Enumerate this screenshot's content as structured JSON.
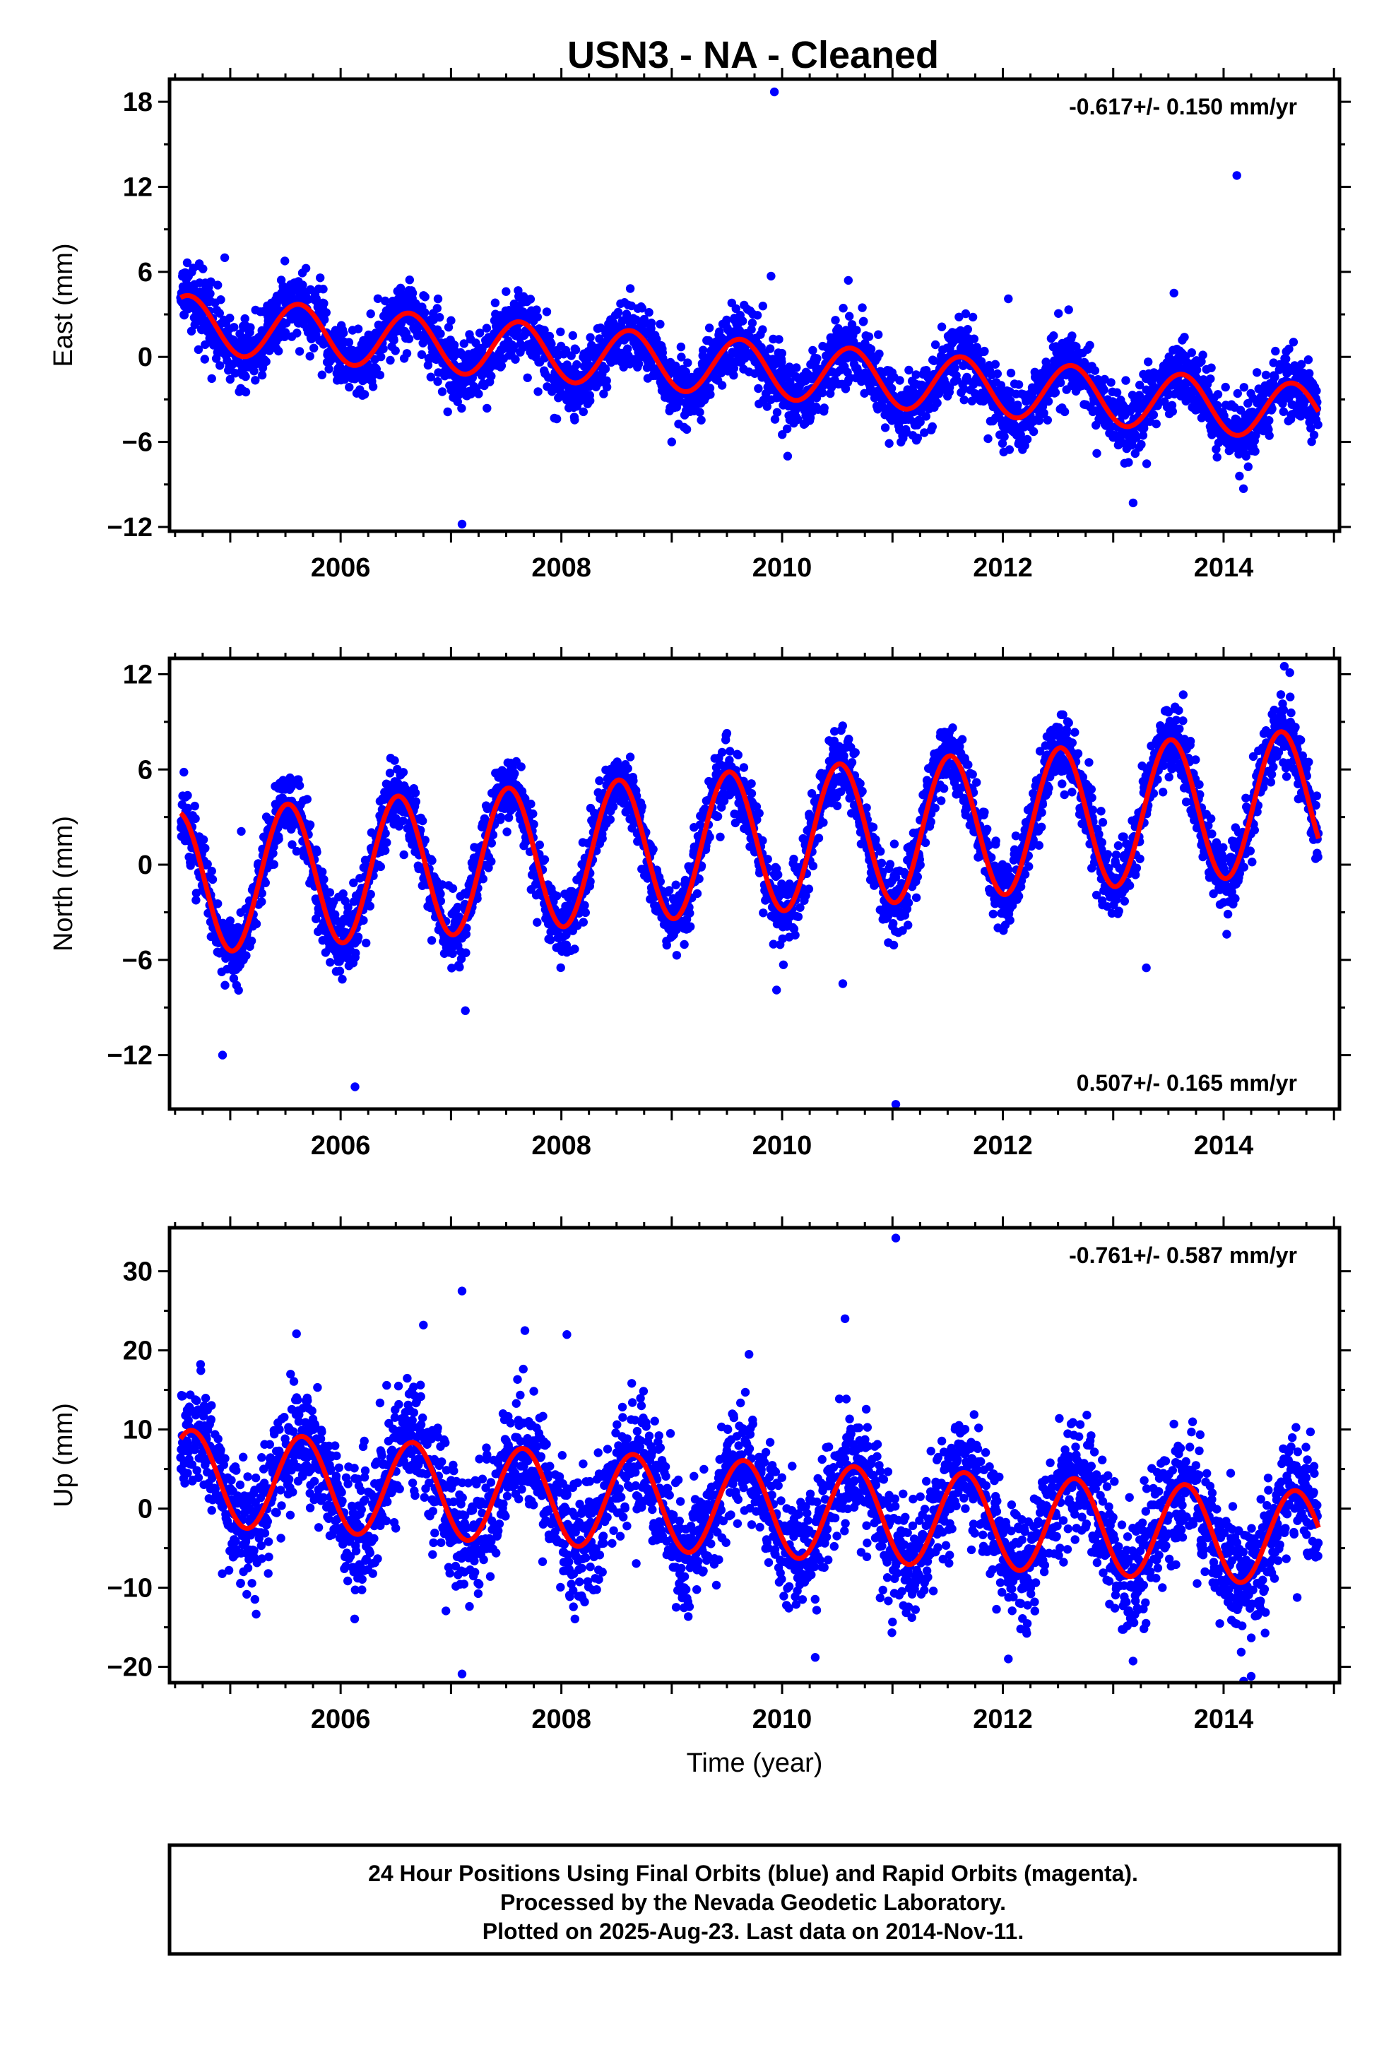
{
  "title": "USN3  - NA - Cleaned",
  "colors": {
    "points": "#0000ff",
    "fit": "#ff0000",
    "frame": "#000000"
  },
  "footer": {
    "line1": "24 Hour Positions Using Final Orbits (blue) and Rapid Orbits (magenta).",
    "line2": "Processed by the Nevada Geodetic Laboratory.",
    "line3": "Plotted on 2025-Aug-23. Last data on 2014-Nov-11."
  },
  "chart_data": [
    {
      "type": "scatter",
      "name": "east",
      "ylabel": "East (mm)",
      "xlabel": "",
      "rate": "-0.617+/- 0.150 mm/yr",
      "rate_position": "top-right",
      "xlim": [
        2004.45,
        2015.05
      ],
      "ylim": [
        -12.3,
        19.6
      ],
      "xticks": [
        2006,
        2008,
        2010,
        2012,
        2014
      ],
      "yticks": [
        -12,
        -6,
        0,
        6,
        12,
        18
      ],
      "ytick_labels": [
        "−12",
        "−6",
        "0",
        "6",
        "12",
        "18"
      ],
      "data_start": 2004.55,
      "data_end": 2014.86,
      "trend": {
        "intercept_2004_5": 2.4,
        "slope_mm_yr": -0.617
      },
      "seasonal_amplitude": 2.0,
      "seasonal_peak": 0.62,
      "noise_mm": 1.2,
      "outliers": [
        [
          2009.93,
          18.7
        ],
        [
          2014.12,
          12.8
        ],
        [
          2007.1,
          -11.8
        ],
        [
          2013.18,
          -10.3
        ],
        [
          2014.18,
          -9.3
        ],
        [
          2009.0,
          -6.0
        ],
        [
          2010.05,
          -7.0
        ],
        [
          2004.95,
          7.0
        ],
        [
          2009.9,
          5.7
        ],
        [
          2010.6,
          5.4
        ],
        [
          2013.55,
          4.5
        ],
        [
          2012.05,
          4.1
        ]
      ],
      "fit_series": "red seasonal + linear fit"
    },
    {
      "type": "scatter",
      "name": "north",
      "ylabel": "North (mm)",
      "xlabel": "",
      "rate": "0.507+/- 0.165 mm/yr",
      "rate_position": "bottom-right",
      "xlim": [
        2004.45,
        2015.05
      ],
      "ylim": [
        -15.4,
        13.0
      ],
      "xticks": [
        2006,
        2008,
        2010,
        2012,
        2014
      ],
      "yticks": [
        -12,
        -6,
        0,
        6,
        12
      ],
      "ytick_labels": [
        "−12",
        "−6",
        "0",
        "6",
        "12"
      ],
      "data_start": 2004.55,
      "data_end": 2014.86,
      "trend": {
        "intercept_2004_5": -1.2,
        "slope_mm_yr": 0.507
      },
      "seasonal_amplitude": 4.5,
      "seasonal_peak": 0.52,
      "noise_mm": 1.1,
      "outliers": [
        [
          2004.93,
          -12.0
        ],
        [
          2006.13,
          -14.0
        ],
        [
          2007.13,
          -9.2
        ],
        [
          2011.03,
          -15.1
        ],
        [
          2014.55,
          12.5
        ],
        [
          2014.6,
          12.1
        ],
        [
          2009.95,
          -7.9
        ],
        [
          2010.55,
          -7.5
        ],
        [
          2013.3,
          -6.5
        ],
        [
          2005.1,
          2.1
        ]
      ],
      "fit_series": "red seasonal + linear fit"
    },
    {
      "type": "scatter",
      "name": "up",
      "ylabel": "Up (mm)",
      "xlabel": "Time (year)",
      "rate": "-0.761+/- 0.587 mm/yr",
      "rate_position": "top-right",
      "xlim": [
        2004.45,
        2015.05
      ],
      "ylim": [
        -22.0,
        35.5
      ],
      "xticks": [
        2006,
        2008,
        2010,
        2012,
        2014
      ],
      "yticks": [
        -20,
        -10,
        0,
        10,
        20,
        30
      ],
      "ytick_labels": [
        "−20",
        "−10",
        "0",
        "10",
        "20",
        "30"
      ],
      "data_start": 2004.55,
      "data_end": 2014.86,
      "trend": {
        "intercept_2004_5": 4.0,
        "slope_mm_yr": -0.761
      },
      "seasonal_amplitude": 6.0,
      "seasonal_peak": 0.65,
      "noise_mm": 3.8,
      "outliers": [
        [
          2011.03,
          34.2
        ],
        [
          2007.1,
          27.5
        ],
        [
          2006.75,
          23.2
        ],
        [
          2008.05,
          22.0
        ],
        [
          2010.57,
          24.0
        ],
        [
          2007.1,
          -20.9
        ],
        [
          2012.05,
          -19.0
        ],
        [
          2014.25,
          -21.2
        ],
        [
          2010.3,
          -18.8
        ],
        [
          2009.7,
          19.5
        ],
        [
          2005.6,
          22.1
        ],
        [
          2007.67,
          22.5
        ]
      ],
      "fit_series": "red seasonal + linear fit"
    }
  ]
}
